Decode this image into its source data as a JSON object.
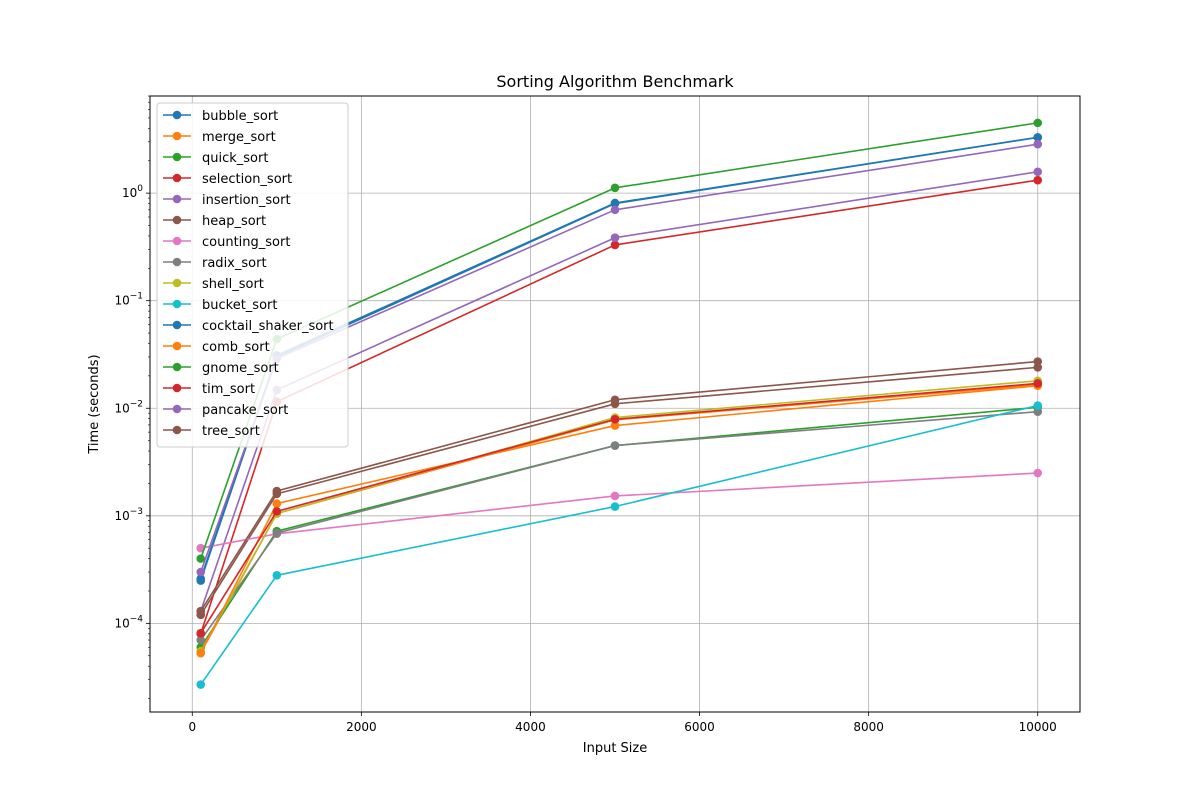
{
  "chart_data": {
    "type": "line",
    "title": "Sorting Algorithm Benchmark",
    "xlabel": "Input Size",
    "ylabel": "Time (seconds)",
    "xscale": "linear",
    "yscale": "log",
    "xlim": [
      -500,
      10500
    ],
    "ylim": [
      1.5e-05,
      8
    ],
    "xticks": [
      {
        "value": 0,
        "label": "0"
      },
      {
        "value": 2000,
        "label": "2000"
      },
      {
        "value": 4000,
        "label": "4000"
      },
      {
        "value": 6000,
        "label": "6000"
      },
      {
        "value": 8000,
        "label": "8000"
      },
      {
        "value": 10000,
        "label": "10000"
      }
    ],
    "yticks": [
      {
        "value": 0.0001,
        "base": "10",
        "exp": "−4"
      },
      {
        "value": 0.001,
        "base": "10",
        "exp": "−3"
      },
      {
        "value": 0.01,
        "base": "10",
        "exp": "−2"
      },
      {
        "value": 0.1,
        "base": "10",
        "exp": "−1"
      },
      {
        "value": 1,
        "base": "10",
        "exp": "0"
      }
    ],
    "grid": true,
    "legend_position": "upper-left",
    "x": [
      100,
      1000,
      5000,
      10000
    ],
    "series": [
      {
        "name": "bubble_sort",
        "color": "#1f77b4",
        "values": [
          0.00025,
          0.03,
          0.8,
          3.3
        ]
      },
      {
        "name": "merge_sort",
        "color": "#ff7f0e",
        "values": [
          5.3e-05,
          0.00105,
          0.0078,
          0.0165
        ]
      },
      {
        "name": "quick_sort",
        "color": "#2ca02c",
        "values": [
          6e-05,
          0.00072,
          0.0045,
          0.0102
        ]
      },
      {
        "name": "selection_sort",
        "color": "#d62728",
        "values": [
          8e-05,
          0.0115,
          0.33,
          1.32
        ]
      },
      {
        "name": "insertion_sort",
        "color": "#9467bd",
        "values": [
          0.00013,
          0.0148,
          0.385,
          1.58
        ]
      },
      {
        "name": "heap_sort",
        "color": "#8c564b",
        "values": [
          0.00012,
          0.0016,
          0.011,
          0.024
        ]
      },
      {
        "name": "counting_sort",
        "color": "#e377c2",
        "values": [
          0.0005,
          0.00068,
          0.00153,
          0.0025
        ]
      },
      {
        "name": "radix_sort",
        "color": "#7f7f7f",
        "values": [
          7e-05,
          0.00069,
          0.0045,
          0.0093
        ]
      },
      {
        "name": "shell_sort",
        "color": "#bcbd22",
        "values": [
          5.5e-05,
          0.00105,
          0.0082,
          0.018
        ]
      },
      {
        "name": "bucket_sort",
        "color": "#17becf",
        "values": [
          2.7e-05,
          0.00028,
          0.00122,
          0.0106
        ]
      },
      {
        "name": "cocktail_shaker_sort",
        "color": "#1f77b4",
        "values": [
          0.00026,
          0.031,
          0.81,
          3.3
        ]
      },
      {
        "name": "comb_sort",
        "color": "#ff7f0e",
        "values": [
          5.3e-05,
          0.0013,
          0.0069,
          0.0162
        ]
      },
      {
        "name": "gnome_sort",
        "color": "#2ca02c",
        "values": [
          0.0004,
          0.044,
          1.12,
          4.5
        ]
      },
      {
        "name": "tim_sort",
        "color": "#d62728",
        "values": [
          8.1e-05,
          0.0011,
          0.0079,
          0.017
        ]
      },
      {
        "name": "pancake_sort",
        "color": "#9467bd",
        "values": [
          0.0003,
          0.029,
          0.7,
          2.85
        ]
      },
      {
        "name": "tree_sort",
        "color": "#8c564b",
        "values": [
          0.00013,
          0.0017,
          0.012,
          0.0272
        ]
      }
    ]
  }
}
